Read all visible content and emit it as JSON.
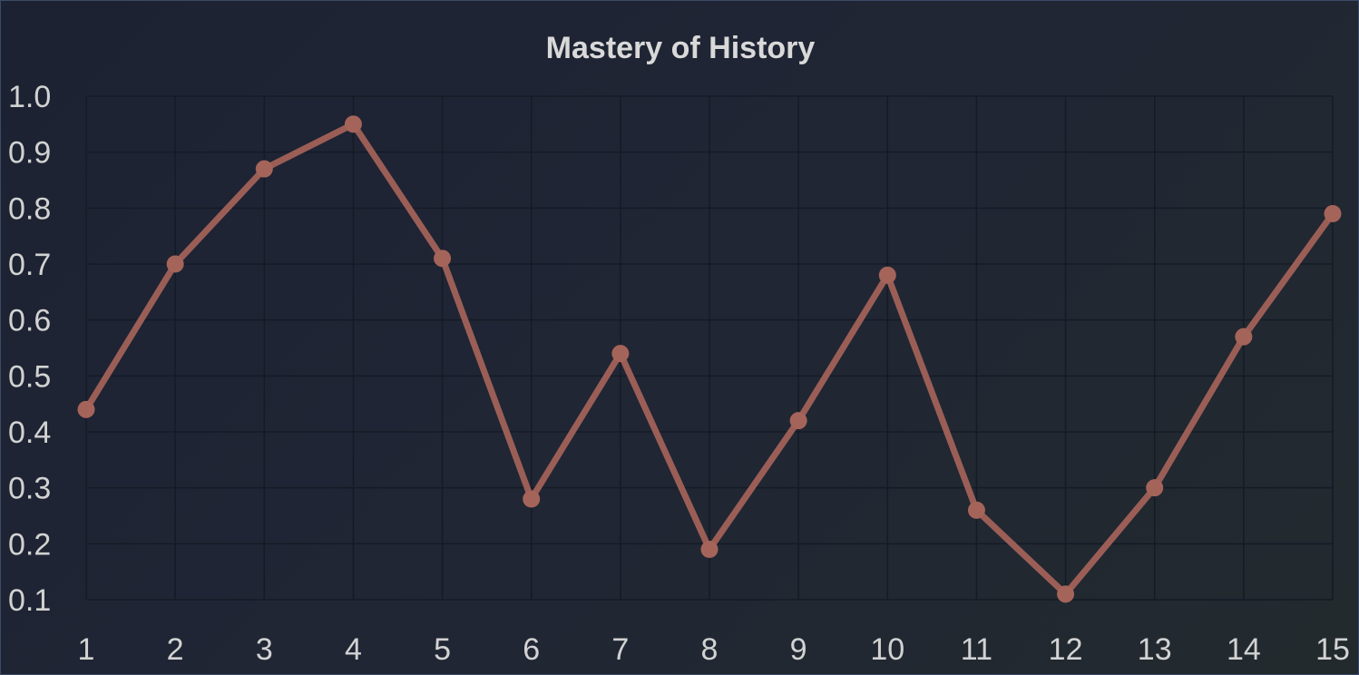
{
  "chart_data": {
    "type": "line",
    "title": "Mastery of History",
    "xlabel": "",
    "ylabel": "",
    "x": [
      1,
      2,
      3,
      4,
      5,
      6,
      7,
      8,
      9,
      10,
      11,
      12,
      13,
      14,
      15
    ],
    "series": [
      {
        "values": [
          0.44,
          0.7,
          0.87,
          0.95,
          0.71,
          0.28,
          0.54,
          0.19,
          0.42,
          0.68,
          0.26,
          0.11,
          0.3,
          0.57,
          0.79
        ]
      }
    ],
    "yticks": [
      "1.0",
      "0.9",
      "0.8",
      "0.7",
      "0.6",
      "0.5",
      "0.4",
      "0.3",
      "0.2",
      "0.1"
    ],
    "xticks": [
      "1",
      "2",
      "3",
      "4",
      "5",
      "6",
      "7",
      "8",
      "9",
      "10",
      "11",
      "12",
      "13",
      "14",
      "15"
    ],
    "ylim": [
      0.1,
      1.0
    ],
    "xlim": [
      1,
      15
    ],
    "grid": true,
    "legend": "none",
    "colors": {
      "line": "#9b5e56",
      "point": "#a5645a",
      "background": "#1e2433",
      "grid": "#151b26",
      "text": "#d2d2d2"
    }
  }
}
